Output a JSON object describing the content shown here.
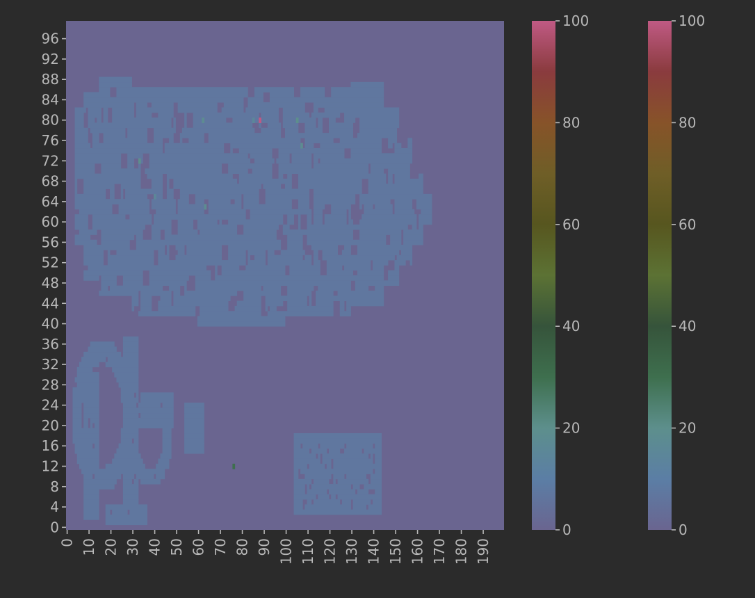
{
  "chart_data": {
    "type": "heatmap",
    "title": "",
    "xlabel": "",
    "ylabel": "",
    "x_range": [
      0,
      199
    ],
    "y_range": [
      0,
      99
    ],
    "x_ticks": [
      "0",
      "10",
      "20",
      "30",
      "40",
      "50",
      "60",
      "70",
      "80",
      "90",
      "100",
      "110",
      "120",
      "130",
      "140",
      "150",
      "160",
      "170",
      "180",
      "190"
    ],
    "y_ticks": [
      "0",
      "4",
      "8",
      "12",
      "16",
      "20",
      "24",
      "28",
      "32",
      "36",
      "40",
      "44",
      "48",
      "52",
      "56",
      "60",
      "64",
      "68",
      "72",
      "76",
      "80",
      "84",
      "88",
      "92",
      "96"
    ],
    "value_range": [
      0,
      100
    ],
    "background_value": 0,
    "colormap": [
      "#6a6590",
      "#5b7ea5",
      "#5d8f8c",
      "#3e6f4e",
      "#36543b",
      "#5c7234",
      "#57561f",
      "#6f5e27",
      "#875329",
      "#8a3b3e",
      "#c05a84"
    ],
    "regions": [
      {
        "name": "large blob",
        "x_range": [
          4,
          166
        ],
        "y_range": [
          40,
          88
        ],
        "approx_value": 7
      },
      {
        "name": "lower-left shapes",
        "x_range": [
          0,
          60
        ],
        "y_range": [
          1,
          37
        ],
        "approx_value": 7
      },
      {
        "name": "lower-right glyph",
        "x_range": [
          104,
          143
        ],
        "y_range": [
          3,
          18
        ],
        "approx_value": 7
      }
    ],
    "highlight_points": [
      {
        "x": 88,
        "y": 80,
        "value": 100
      },
      {
        "x": 76,
        "y": 12,
        "value": 30
      },
      {
        "x": 33,
        "y": 72,
        "value": 20
      },
      {
        "x": 105,
        "y": 80,
        "value": 20
      },
      {
        "x": 62,
        "y": 80,
        "value": 18
      },
      {
        "x": 63,
        "y": 63,
        "value": 18
      },
      {
        "x": 107,
        "y": 75,
        "value": 18
      },
      {
        "x": 85,
        "y": 80,
        "value": 15
      },
      {
        "x": 40,
        "y": 65,
        "value": 15
      }
    ],
    "colorbars": [
      {
        "ticks": [
          "0",
          "20",
          "40",
          "60",
          "80",
          "100"
        ]
      },
      {
        "ticks": [
          "0",
          "20",
          "40",
          "60",
          "80",
          "100"
        ]
      }
    ],
    "grid": false,
    "legend": "none"
  }
}
